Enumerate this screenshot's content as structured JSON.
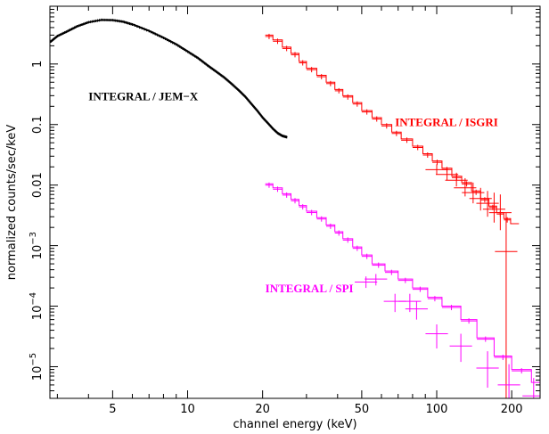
{
  "chart_data": {
    "type": "line",
    "xlabel": "channel energy (keV)",
    "ylabel": "normalized counts/sec/keV",
    "x_scale": "log",
    "y_scale": "log",
    "xlim": [
      2.8,
      260
    ],
    "ylim": [
      3e-06,
      9
    ],
    "x_ticks": [
      {
        "value": 5,
        "label": "5"
      },
      {
        "value": 10,
        "label": "10"
      },
      {
        "value": 20,
        "label": "20"
      },
      {
        "value": 50,
        "label": "50"
      },
      {
        "value": 100,
        "label": "100"
      },
      {
        "value": 200,
        "label": "200"
      }
    ],
    "y_ticks": [
      {
        "value": 1e-05,
        "base": "10",
        "exp": "−5"
      },
      {
        "value": 0.0001,
        "base": "10",
        "exp": "−4"
      },
      {
        "value": 0.001,
        "base": "10",
        "exp": "−3"
      },
      {
        "value": 0.01,
        "label": "0.01"
      },
      {
        "value": 0.1,
        "label": "0.1"
      },
      {
        "value": 1,
        "label": "1"
      }
    ],
    "annotations": [
      {
        "text": "INTEGRAL / JEM−X",
        "color": "#000000",
        "x": 4.0,
        "y": 0.25
      },
      {
        "text": "INTEGRAL / ISGRI",
        "color": "#ff0000",
        "x": 68,
        "y": 0.095
      },
      {
        "text": "INTEGRAL / SPI",
        "color": "#ff00ff",
        "x": 20.5,
        "y": 0.00017
      }
    ],
    "series": [
      {
        "color": "#000000",
        "style": "dense-steps",
        "x": [
          2.8,
          3.0,
          3.3,
          3.6,
          4.0,
          4.5,
          5.0,
          5.5,
          6.0,
          7.0,
          8.0,
          9.0,
          10,
          11,
          12,
          13,
          14,
          15,
          16,
          17,
          18,
          19,
          20,
          21,
          22,
          23,
          24,
          25
        ],
        "y": [
          2.3,
          2.9,
          3.5,
          4.2,
          4.9,
          5.35,
          5.3,
          5.0,
          4.5,
          3.5,
          2.7,
          2.1,
          1.6,
          1.25,
          0.95,
          0.75,
          0.6,
          0.47,
          0.37,
          0.29,
          0.22,
          0.17,
          0.13,
          0.105,
          0.085,
          0.072,
          0.065,
          0.062
        ]
      },
      {
        "color": "#ff0000",
        "style": "histogram",
        "x": [
          20.5,
          22,
          24,
          26,
          28,
          30,
          33,
          36,
          39,
          42,
          46,
          50,
          55,
          60,
          66,
          72,
          80,
          88,
          96,
          105,
          115,
          126,
          138,
          150,
          162,
          174,
          186,
          198
        ],
        "y": [
          3.0,
          2.5,
          1.9,
          1.5,
          1.1,
          0.85,
          0.65,
          0.5,
          0.38,
          0.3,
          0.23,
          0.17,
          0.13,
          0.1,
          0.075,
          0.058,
          0.044,
          0.033,
          0.025,
          0.019,
          0.014,
          0.011,
          0.008,
          0.006,
          0.0045,
          0.0035,
          0.0028,
          0.0023
        ],
        "crosses": [
          {
            "x": 100,
            "y": 0.018,
            "ylo": 0.015,
            "yhi": 0.022
          },
          {
            "x": 110,
            "y": 0.015,
            "ylo": 0.012,
            "yhi": 0.019
          },
          {
            "x": 120,
            "y": 0.012,
            "ylo": 0.0095,
            "yhi": 0.016
          },
          {
            "x": 130,
            "y": 0.009,
            "ylo": 0.0065,
            "yhi": 0.013
          },
          {
            "x": 140,
            "y": 0.0075,
            "ylo": 0.005,
            "yhi": 0.011
          },
          {
            "x": 150,
            "y": 0.006,
            "ylo": 0.0038,
            "yhi": 0.009
          },
          {
            "x": 160,
            "y": 0.005,
            "ylo": 0.003,
            "yhi": 0.008
          },
          {
            "x": 170,
            "y": 0.004,
            "ylo": 0.0024,
            "yhi": 0.0075
          },
          {
            "x": 180,
            "y": 0.0035,
            "ylo": 0.0018,
            "yhi": 0.007
          },
          {
            "x": 190,
            "y": 0.0008,
            "ylo": 3e-06,
            "yhi": 0.0035
          }
        ]
      },
      {
        "color": "#ff00ff",
        "style": "histogram",
        "x": [
          20.5,
          22,
          24,
          26,
          28,
          30,
          33,
          36,
          39,
          42,
          46,
          50,
          55,
          62,
          70,
          80,
          92,
          105,
          125,
          145,
          170,
          200,
          240
        ],
        "y": [
          0.0105,
          0.009,
          0.0072,
          0.0058,
          0.0046,
          0.0037,
          0.0029,
          0.0022,
          0.0017,
          0.0013,
          0.00095,
          0.0007,
          0.0005,
          0.00038,
          0.00028,
          0.0002,
          0.00014,
          0.0001,
          6e-05,
          3e-05,
          1.5e-05,
          9e-06,
          5.5e-06
        ],
        "crosses": [
          {
            "x": 52,
            "y": 0.00025,
            "ylo": 0.0002,
            "yhi": 0.00031
          },
          {
            "x": 57,
            "y": 0.00028,
            "ylo": 0.00022,
            "yhi": 0.00034
          },
          {
            "x": 68,
            "y": 0.00012,
            "ylo": 8e-05,
            "yhi": 0.00016
          },
          {
            "x": 78,
            "y": 0.00012,
            "ylo": 8e-05,
            "yhi": 0.00016
          },
          {
            "x": 83,
            "y": 9e-05,
            "ylo": 6e-05,
            "yhi": 0.00012
          },
          {
            "x": 100,
            "y": 3.5e-05,
            "ylo": 2e-05,
            "yhi": 5e-05
          },
          {
            "x": 125,
            "y": 2.2e-05,
            "ylo": 1.2e-05,
            "yhi": 3.5e-05
          },
          {
            "x": 160,
            "y": 9.5e-06,
            "ylo": 4.5e-06,
            "yhi": 1.8e-05
          },
          {
            "x": 195,
            "y": 5e-06,
            "ylo": 3e-06,
            "yhi": 1.1e-05
          },
          {
            "x": 245,
            "y": 3.3e-06,
            "ylo": 3e-06,
            "yhi": 6.5e-06
          }
        ]
      }
    ]
  }
}
